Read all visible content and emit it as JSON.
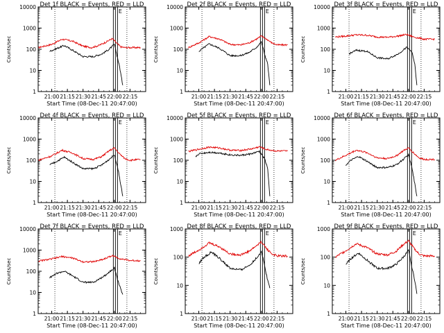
{
  "figure": {
    "ylabel": "Counts/sec",
    "xlabel": "Start Time (08-Dec-11 20:47:00)",
    "ytick_labels": [
      "1",
      "10",
      "100",
      "1000",
      "10000"
    ],
    "xtick_labels": [
      "21:00",
      "21:15",
      "21:30",
      "21:45",
      "22:00",
      "22:15"
    ],
    "flag_label": "E",
    "colors": {
      "events": "#000000",
      "lld": "#e00000",
      "background": "#ffffff"
    }
  },
  "chart_data": [
    {
      "type": "line",
      "title": "Det 1f BLACK = Events, RED = LLD",
      "ylim": [
        1,
        10000
      ],
      "yscale": "log",
      "xlim": [
        "20:47",
        "22:25"
      ],
      "series": [
        {
          "name": "LLD",
          "x": [
            "20:47",
            "21:00",
            "21:10",
            "21:20",
            "21:30",
            "21:38",
            "21:45",
            "21:52",
            "21:58",
            "22:02",
            "22:06",
            "22:10",
            "22:15",
            "22:20",
            "22:25"
          ],
          "y": [
            120,
            170,
            300,
            240,
            140,
            120,
            150,
            220,
            320,
            200,
            130,
            120,
            120,
            120,
            120
          ]
        },
        {
          "name": "Events",
          "x": [
            "20:58",
            "21:05",
            "21:12",
            "21:20",
            "21:30",
            "21:40",
            "21:48",
            "21:55",
            "22:00",
            "22:03",
            "22:05",
            "22:08"
          ],
          "y": [
            80,
            110,
            150,
            90,
            45,
            45,
            60,
            100,
            170,
            40,
            15,
            2
          ]
        }
      ]
    },
    {
      "type": "line",
      "title": "Det 2f BLACK = Events, RED = LLD",
      "ylim": [
        1,
        10000
      ],
      "yscale": "log",
      "xlim": [
        "20:50",
        "22:25"
      ],
      "series": [
        {
          "name": "LLD",
          "x": [
            "20:50",
            "21:00",
            "21:10",
            "21:20",
            "21:30",
            "21:40",
            "21:48",
            "21:55",
            "22:00",
            "22:05",
            "22:10",
            "22:15",
            "22:25"
          ],
          "y": [
            120,
            200,
            400,
            300,
            170,
            160,
            200,
            300,
            420,
            300,
            200,
            160,
            160
          ]
        },
        {
          "name": "Events",
          "x": [
            "21:00",
            "21:05",
            "21:10",
            "21:20",
            "21:30",
            "21:40",
            "21:48",
            "21:55",
            "22:00",
            "22:03",
            "22:06",
            "22:08"
          ],
          "y": [
            80,
            120,
            180,
            110,
            50,
            50,
            70,
            120,
            220,
            60,
            20,
            2
          ]
        }
      ]
    },
    {
      "type": "line",
      "title": "Det 3f BLACK = Events, RED = LLD",
      "ylim": [
        1,
        10000
      ],
      "yscale": "log",
      "xlim": [
        "20:50",
        "22:25"
      ],
      "series": [
        {
          "name": "LLD",
          "x": [
            "20:50",
            "21:00",
            "21:10",
            "21:20",
            "21:30",
            "21:40",
            "21:50",
            "21:58",
            "22:05",
            "22:15",
            "22:25"
          ],
          "y": [
            380,
            420,
            480,
            460,
            380,
            370,
            420,
            500,
            380,
            300,
            300
          ]
        },
        {
          "name": "Events",
          "x": [
            "21:03",
            "21:10",
            "21:20",
            "21:30",
            "21:40",
            "21:50",
            "21:58",
            "22:03",
            "22:06",
            "22:08"
          ],
          "y": [
            60,
            90,
            80,
            40,
            35,
            60,
            120,
            80,
            20,
            2
          ]
        }
      ]
    },
    {
      "type": "line",
      "title": "Det 4f BLACK = Events, RED = LLD",
      "ylim": [
        1,
        10000
      ],
      "yscale": "log",
      "xlim": [
        "20:47",
        "22:25"
      ],
      "series": [
        {
          "name": "LLD",
          "x": [
            "20:47",
            "21:00",
            "21:10",
            "21:20",
            "21:30",
            "21:40",
            "21:48",
            "21:55",
            "22:00",
            "22:05",
            "22:10",
            "22:15",
            "22:25"
          ],
          "y": [
            100,
            160,
            300,
            220,
            120,
            110,
            150,
            280,
            380,
            200,
            120,
            100,
            110
          ]
        },
        {
          "name": "Events",
          "x": [
            "20:58",
            "21:05",
            "21:12",
            "21:20",
            "21:30",
            "21:40",
            "21:48",
            "21:55",
            "22:00",
            "22:03",
            "22:05",
            "22:08"
          ],
          "y": [
            60,
            90,
            140,
            80,
            40,
            40,
            60,
            110,
            180,
            50,
            15,
            2
          ]
        }
      ]
    },
    {
      "type": "line",
      "title": "Det 5f BLACK = Events, RED = LLD",
      "ylim": [
        1,
        10000
      ],
      "yscale": "log",
      "xlim": [
        "20:50",
        "22:25"
      ],
      "series": [
        {
          "name": "LLD",
          "x": [
            "20:50",
            "21:00",
            "21:10",
            "21:20",
            "21:30",
            "21:40",
            "21:50",
            "21:58",
            "22:05",
            "22:15",
            "22:25"
          ],
          "y": [
            260,
            330,
            420,
            380,
            300,
            290,
            340,
            430,
            320,
            270,
            270
          ]
        },
        {
          "name": "Events",
          "x": [
            "20:57",
            "21:00",
            "21:10",
            "21:20",
            "21:30",
            "21:40",
            "21:50",
            "21:58",
            "22:03",
            "22:06",
            "22:08"
          ],
          "y": [
            150,
            200,
            240,
            220,
            180,
            170,
            200,
            260,
            120,
            40,
            2
          ]
        }
      ]
    },
    {
      "type": "line",
      "title": "Det 6f BLACK = Events, RED = LLD",
      "ylim": [
        1,
        10000
      ],
      "yscale": "log",
      "xlim": [
        "20:50",
        "22:25"
      ],
      "series": [
        {
          "name": "LLD",
          "x": [
            "20:50",
            "21:00",
            "21:10",
            "21:20",
            "21:30",
            "21:40",
            "21:48",
            "21:55",
            "22:00",
            "22:05",
            "22:10",
            "22:15",
            "22:25"
          ],
          "y": [
            100,
            170,
            300,
            230,
            130,
            120,
            160,
            280,
            380,
            220,
            130,
            110,
            110
          ]
        },
        {
          "name": "Events",
          "x": [
            "21:00",
            "21:05",
            "21:12",
            "21:20",
            "21:30",
            "21:40",
            "21:48",
            "21:55",
            "22:00",
            "22:03",
            "22:05",
            "22:08"
          ],
          "y": [
            60,
            100,
            150,
            90,
            45,
            45,
            60,
            110,
            180,
            50,
            15,
            2
          ]
        }
      ]
    },
    {
      "type": "line",
      "title": "Det 7f BLACK = Events, RED = LLD",
      "ylim": [
        1,
        10000
      ],
      "yscale": "log",
      "xlim": [
        "20:47",
        "22:25"
      ],
      "series": [
        {
          "name": "LLD",
          "x": [
            "20:47",
            "21:00",
            "21:10",
            "21:20",
            "21:30",
            "21:40",
            "21:50",
            "21:58",
            "22:05",
            "22:15",
            "22:25"
          ],
          "y": [
            300,
            380,
            500,
            420,
            280,
            280,
            380,
            550,
            400,
            320,
            320
          ]
        },
        {
          "name": "Events",
          "x": [
            "20:58",
            "21:05",
            "21:12",
            "21:20",
            "21:30",
            "21:40",
            "21:48",
            "21:55",
            "22:00",
            "22:03",
            "22:06",
            "22:08"
          ],
          "y": [
            50,
            80,
            100,
            60,
            30,
            30,
            50,
            90,
            150,
            40,
            15,
            8
          ]
        }
      ]
    },
    {
      "type": "line",
      "title": "Det 8f BLACK = Events, RED = LLD",
      "ylim": [
        1,
        1000
      ],
      "yscale": "log",
      "xlim": [
        "20:50",
        "22:25"
      ],
      "series": [
        {
          "name": "LLD",
          "x": [
            "20:50",
            "21:00",
            "21:10",
            "21:20",
            "21:30",
            "21:40",
            "21:48",
            "21:55",
            "22:00",
            "22:05",
            "22:10",
            "22:15",
            "22:25"
          ],
          "y": [
            110,
            180,
            320,
            230,
            130,
            120,
            160,
            250,
            350,
            200,
            130,
            110,
            110
          ]
        },
        {
          "name": "Events",
          "x": [
            "21:00",
            "21:05",
            "21:12",
            "21:20",
            "21:30",
            "21:40",
            "21:48",
            "21:55",
            "22:00",
            "22:03",
            "22:06",
            "22:08"
          ],
          "y": [
            60,
            100,
            150,
            90,
            40,
            35,
            50,
            90,
            160,
            50,
            15,
            8
          ]
        }
      ]
    },
    {
      "type": "line",
      "title": "Det 9f BLACK = Events, RED = LLD",
      "ylim": [
        1,
        1000
      ],
      "yscale": "log",
      "xlim": [
        "20:50",
        "22:25"
      ],
      "series": [
        {
          "name": "LLD",
          "x": [
            "20:50",
            "21:00",
            "21:10",
            "21:20",
            "21:30",
            "21:40",
            "21:48",
            "21:55",
            "22:00",
            "22:05",
            "22:10",
            "22:15",
            "22:25"
          ],
          "y": [
            100,
            170,
            300,
            220,
            130,
            120,
            160,
            280,
            380,
            210,
            130,
            110,
            110
          ]
        },
        {
          "name": "Events",
          "x": [
            "21:00",
            "21:05",
            "21:12",
            "21:20",
            "21:30",
            "21:40",
            "21:48",
            "21:55",
            "22:00",
            "22:03",
            "22:06",
            "22:08"
          ],
          "y": [
            55,
            90,
            140,
            80,
            40,
            40,
            55,
            100,
            170,
            50,
            15,
            5
          ]
        }
      ]
    }
  ]
}
